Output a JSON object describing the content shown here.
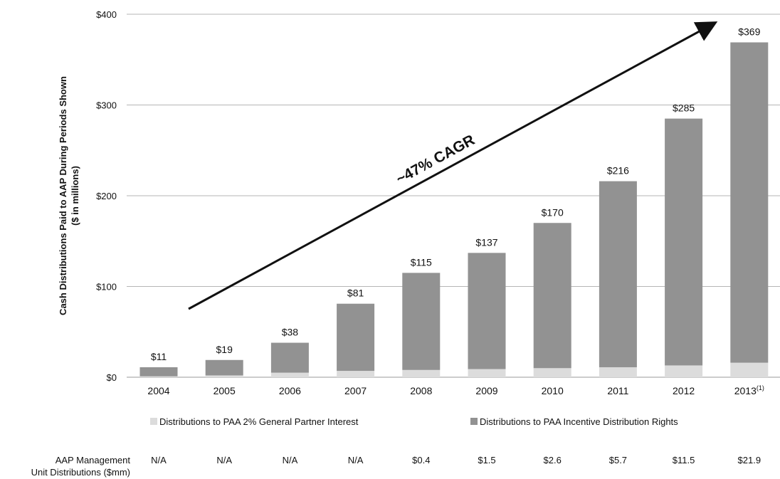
{
  "chart_data": {
    "type": "bar",
    "stacked": true,
    "ylabel": "Cash Distributions Paid to AAP During Periods Shown",
    "ylabel_sub": "($ in millions)",
    "ylim": [
      0,
      400
    ],
    "yticks": [
      "$0",
      "$100",
      "$200",
      "$300",
      "$400"
    ],
    "ytick_values": [
      0,
      100,
      200,
      300,
      400
    ],
    "grid": true,
    "categories": [
      "2004",
      "2005",
      "2006",
      "2007",
      "2008",
      "2009",
      "2010",
      "2011",
      "2012",
      "2013"
    ],
    "footnote_marks": [
      "",
      "",
      "",
      "",
      "",
      "",
      "",
      "",
      "",
      "(1)"
    ],
    "series": [
      {
        "name": "Distributions to PAA 2% General Partner Interest",
        "color": "#dcdcdc",
        "values": [
          1,
          2,
          5,
          7,
          8,
          9,
          10,
          11,
          13,
          16
        ]
      },
      {
        "name": "Distributions to PAA Incentive Distribution Rights",
        "color": "#929292",
        "values": [
          10,
          17,
          33,
          74,
          107,
          128,
          160,
          205,
          272,
          353
        ]
      }
    ],
    "total_labels": [
      "$11",
      "$19",
      "$38",
      "$81",
      "$115",
      "$137",
      "$170",
      "$216",
      "$285",
      "$369"
    ],
    "totals": [
      11,
      19,
      38,
      81,
      115,
      137,
      170,
      216,
      285,
      369
    ],
    "annotation": "~47% CAGR",
    "legend_position": "bottom",
    "table_row": {
      "label_line1": "AAP Management",
      "label_line2": "Unit Distributions ($mm)",
      "values": [
        "N/A",
        "N/A",
        "N/A",
        "N/A",
        "$0.4",
        "$1.5",
        "$2.6",
        "$5.7",
        "$11.5",
        "$21.9"
      ]
    }
  }
}
